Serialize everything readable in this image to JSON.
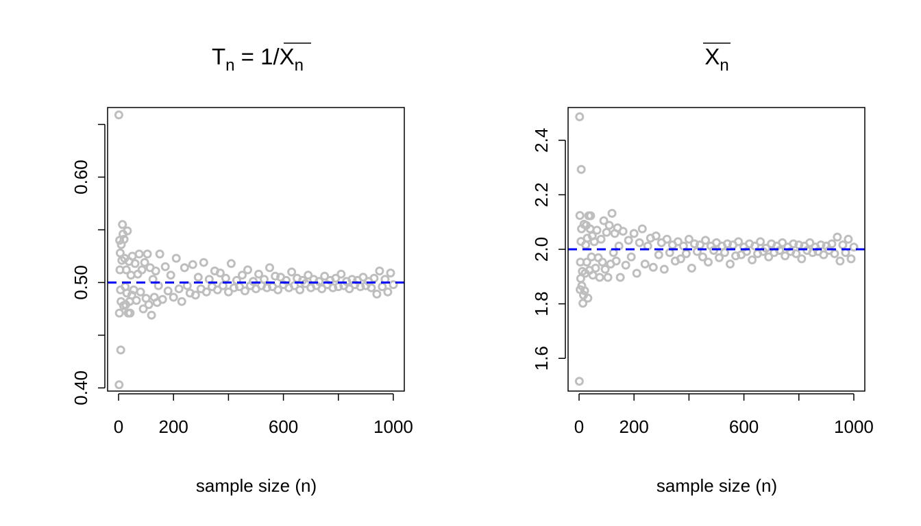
{
  "chart_data": [
    {
      "type": "scatter",
      "title": {
        "pre": "T",
        "pre_sub": "n",
        "mid": " = 1",
        "slash": "/",
        "post": "X",
        "post_sub": "n"
      },
      "xlabel": "sample size (n)",
      "ylabel": "",
      "xlim": [
        -40,
        1040
      ],
      "ylim": [
        0.397,
        0.666
      ],
      "xticks": [
        0,
        200,
        400,
        600,
        800,
        1000
      ],
      "xtick_labels": [
        "0",
        "200",
        "",
        "600",
        "",
        "1000"
      ],
      "yticks": [
        0.4,
        0.45,
        0.5,
        0.55,
        0.6,
        0.65
      ],
      "ytick_labels": [
        "0.40",
        "",
        "0.50",
        "",
        "0.60",
        ""
      ],
      "reference_line": {
        "y": 0.5,
        "color": "#0000ff",
        "style": "dashed"
      },
      "point_color": "#bebebe",
      "series": [
        {
          "values": {
            "x": [
              1,
              2,
              3,
              4,
              5,
              6,
              7,
              8,
              9,
              10,
              12,
              14,
              16,
              18,
              20,
              22,
              24,
              26,
              28,
              30,
              32,
              35,
              38,
              40,
              42,
              45,
              48,
              50,
              55,
              60,
              65,
              70,
              75,
              80,
              85,
              90,
              95,
              100,
              105,
              110,
              115,
              120,
              125,
              130,
              135,
              140,
              145,
              150,
              160,
              170,
              180,
              190,
              200,
              210,
              220,
              230,
              240,
              250,
              260,
              270,
              280,
              290,
              300,
              310,
              320,
              330,
              340,
              350,
              360,
              370,
              380,
              390,
              400,
              410,
              420,
              430,
              440,
              450,
              460,
              470,
              480,
              490,
              500,
              510,
              520,
              530,
              540,
              550,
              560,
              570,
              580,
              590,
              600,
              610,
              620,
              630,
              640,
              650,
              660,
              670,
              680,
              690,
              700,
              710,
              720,
              730,
              740,
              750,
              760,
              770,
              780,
              790,
              800,
              810,
              820,
              830,
              840,
              850,
              860,
              870,
              880,
              890,
              900,
              910,
              920,
              930,
              940,
              950,
              960,
              970,
              980,
              990,
              1000
            ],
            "y": [
              0.659,
              0.403,
              0.471,
              0.54,
              0.512,
              0.528,
              0.493,
              0.436,
              0.482,
              0.536,
              0.521,
              0.555,
              0.546,
              0.478,
              0.541,
              0.523,
              0.496,
              0.479,
              0.512,
              0.49,
              0.549,
              0.471,
              0.52,
              0.482,
              0.471,
              0.507,
              0.488,
              0.525,
              0.493,
              0.518,
              0.483,
              0.508,
              0.527,
              0.491,
              0.512,
              0.475,
              0.519,
              0.485,
              0.527,
              0.479,
              0.514,
              0.469,
              0.503,
              0.486,
              0.511,
              0.481,
              0.497,
              0.527,
              0.484,
              0.515,
              0.492,
              0.507,
              0.486,
              0.523,
              0.494,
              0.482,
              0.514,
              0.497,
              0.49,
              0.517,
              0.488,
              0.505,
              0.494,
              0.519,
              0.491,
              0.503,
              0.496,
              0.511,
              0.493,
              0.509,
              0.497,
              0.504,
              0.491,
              0.518,
              0.495,
              0.502,
              0.496,
              0.507,
              0.492,
              0.512,
              0.497,
              0.501,
              0.494,
              0.508,
              0.497,
              0.503,
              0.495,
              0.514,
              0.496,
              0.506,
              0.493,
              0.505,
              0.498,
              0.502,
              0.495,
              0.51,
              0.497,
              0.504,
              0.493,
              0.502,
              0.499,
              0.507,
              0.495,
              0.503,
              0.497,
              0.501,
              0.494,
              0.506,
              0.498,
              0.502,
              0.495,
              0.504,
              0.496,
              0.508,
              0.497,
              0.501,
              0.494,
              0.503,
              0.498,
              0.502,
              0.496,
              0.505,
              0.497,
              0.501,
              0.495,
              0.504,
              0.489,
              0.511,
              0.496,
              0.503,
              0.491,
              0.509,
              0.498
            ]
          }
        }
      ]
    },
    {
      "type": "scatter",
      "title": {
        "pre": "",
        "pre_sub": "",
        "mid": "",
        "slash": "",
        "post": "X",
        "post_sub": "n"
      },
      "xlabel": "sample size (n)",
      "ylabel": "",
      "xlim": [
        -40,
        1040
      ],
      "ylim": [
        1.48,
        2.52
      ],
      "xticks": [
        0,
        200,
        400,
        600,
        800,
        1000
      ],
      "xtick_labels": [
        "0",
        "200",
        "",
        "600",
        "",
        "1000"
      ],
      "yticks": [
        1.6,
        1.8,
        2.0,
        2.2,
        2.4
      ],
      "ytick_labels": [
        "1.6",
        "1.8",
        "2.0",
        "2.2",
        "2.4"
      ],
      "reference_line": {
        "y": 2.0,
        "color": "#0000ff",
        "style": "dashed"
      },
      "point_color": "#bebebe",
      "series": [
        {
          "values": {
            "x": [
              1,
              2,
              3,
              4,
              5,
              6,
              7,
              8,
              9,
              10,
              12,
              14,
              16,
              18,
              20,
              22,
              24,
              26,
              28,
              30,
              32,
              35,
              38,
              40,
              42,
              45,
              48,
              50,
              55,
              60,
              65,
              70,
              75,
              80,
              85,
              90,
              95,
              100,
              105,
              110,
              115,
              120,
              125,
              130,
              135,
              140,
              145,
              150,
              160,
              170,
              180,
              190,
              200,
              210,
              220,
              230,
              240,
              250,
              260,
              270,
              280,
              290,
              300,
              310,
              320,
              330,
              340,
              350,
              360,
              370,
              380,
              390,
              400,
              410,
              420,
              430,
              440,
              450,
              460,
              470,
              480,
              490,
              500,
              510,
              520,
              530,
              540,
              550,
              560,
              570,
              580,
              590,
              600,
              610,
              620,
              630,
              640,
              650,
              660,
              670,
              680,
              690,
              700,
              710,
              720,
              730,
              740,
              750,
              760,
              770,
              780,
              790,
              800,
              810,
              820,
              830,
              840,
              850,
              860,
              870,
              880,
              890,
              900,
              910,
              920,
              930,
              940,
              950,
              960,
              970,
              980,
              990,
              1000
            ],
            "y": [
              1.516,
              2.486,
              2.124,
              1.852,
              1.953,
              1.893,
              2.029,
              2.293,
              2.075,
              1.866,
              1.919,
              1.802,
              1.832,
              2.092,
              1.848,
              1.912,
              2.016,
              2.088,
              1.953,
              2.041,
              1.821,
              2.123,
              1.923,
              2.075,
              2.123,
              1.972,
              2.049,
              1.905,
              2.028,
              1.931,
              2.07,
              1.969,
              1.897,
              2.037,
              1.953,
              2.105,
              1.927,
              2.062,
              1.897,
              2.088,
              1.946,
              2.132,
              1.988,
              2.058,
              1.957,
              2.079,
              2.012,
              1.897,
              2.066,
              1.942,
              2.033,
              1.972,
              2.058,
              1.912,
              2.024,
              2.075,
              1.946,
              2.012,
              2.041,
              1.934,
              2.049,
              1.98,
              2.024,
              1.927,
              2.037,
              1.988,
              2.016,
              1.957,
              2.028,
              1.965,
              2.012,
              1.984,
              2.037,
              1.931,
              2.02,
              1.992,
              2.016,
              1.972,
              2.033,
              1.953,
              2.012,
              1.996,
              2.024,
              1.969,
              2.012,
              1.988,
              2.02,
              1.946,
              2.016,
              1.976,
              2.028,
              1.98,
              2.008,
              1.992,
              2.02,
              1.961,
              2.012,
              1.984,
              2.028,
              1.992,
              2.004,
              1.972,
              2.02,
              1.988,
              2.012,
              1.996,
              2.024,
              1.976,
              2.008,
              1.992,
              2.02,
              1.984,
              2.016,
              1.965,
              2.012,
              1.996,
              2.024,
              1.988,
              2.008,
              1.992,
              2.016,
              1.98,
              2.012,
              1.996,
              2.02,
              1.984,
              2.045,
              1.957,
              2.016,
              1.988,
              2.037,
              1.965,
              2.008
            ]
          }
        }
      ]
    }
  ]
}
